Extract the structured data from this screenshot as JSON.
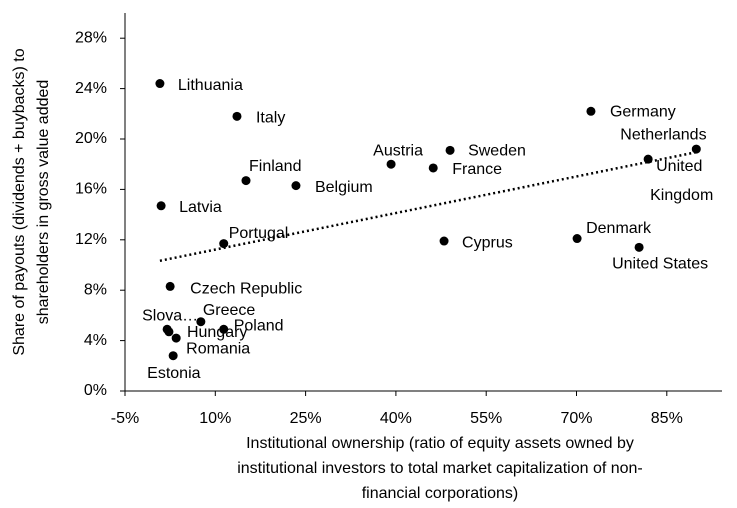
{
  "chart_data": {
    "type": "scatter",
    "y_label": [
      "Share of payouts (dividends + buybacks) to",
      "shareholders in gross value added"
    ],
    "x_label": [
      "Institutional ownership (ratio of equity assets owned by",
      "institutional investors to total market capitalization of non-",
      "financial corporations)"
    ],
    "labels": [
      "Lithuania",
      "Italy",
      "Germany",
      "Netherlands",
      "United Kingdom",
      "Austria",
      "Sweden",
      "France",
      "Finland",
      "Belgium",
      "Latvia",
      "Portugal",
      "Cyprus",
      "Denmark",
      "United States",
      "Czech Republic",
      "Slova…",
      "Greece",
      "Poland",
      "Hungary",
      "Romania",
      "Estonia"
    ],
    "x": [
      0.8,
      13.6,
      72.4,
      89.9,
      81.9,
      39.2,
      49.0,
      46.2,
      15.1,
      23.4,
      1.0,
      11.4,
      48.0,
      70.1,
      80.4,
      2.5,
      2.0,
      7.6,
      11.4,
      2.3,
      3.5,
      3.0
    ],
    "values": [
      24.4,
      21.8,
      22.2,
      19.2,
      18.4,
      18.0,
      19.1,
      17.7,
      16.7,
      16.3,
      14.7,
      11.7,
      11.9,
      12.1,
      11.4,
      8.3,
      4.9,
      5.5,
      4.9,
      4.7,
      4.2,
      2.8
    ],
    "color": "#000000",
    "trendline": true,
    "xlim": [
      -5,
      95
    ],
    "xticks": [
      {
        "value": -5,
        "label": "-5%"
      },
      {
        "value": 10,
        "label": "10%"
      },
      {
        "value": 25,
        "label": "25%"
      },
      {
        "value": 40,
        "label": "40%"
      },
      {
        "value": 55,
        "label": "55%"
      },
      {
        "value": 70,
        "label": "70%"
      },
      {
        "value": 85,
        "label": "85%"
      }
    ],
    "ylim": [
      0,
      30
    ],
    "yticks": [
      {
        "value": 0,
        "label": "0%"
      },
      {
        "value": 4,
        "label": "4%"
      },
      {
        "value": 8,
        "label": "8%"
      },
      {
        "value": 12,
        "label": "12%"
      },
      {
        "value": 16,
        "label": "16%"
      },
      {
        "value": 20,
        "label": "20%"
      },
      {
        "value": 24,
        "label": "24%"
      },
      {
        "value": 28,
        "label": "28%"
      }
    ]
  }
}
